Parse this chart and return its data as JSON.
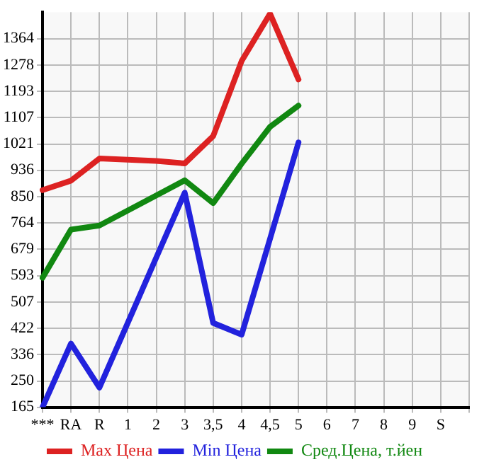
{
  "chart_data": {
    "type": "line",
    "categories": [
      "***",
      "RA",
      "R",
      "1",
      "2",
      "3",
      "3,5",
      "4",
      "4,5",
      "5",
      "6",
      "7",
      "8",
      "9",
      "S",
      null
    ],
    "series": [
      {
        "name": "Max Цена",
        "color": "#dd2222",
        "values": [
          871,
          902,
          974,
          970,
          966,
          958,
          1047,
          1291,
          1445,
          1231,
          null,
          null,
          null,
          null,
          null,
          null
        ]
      },
      {
        "name": "Min Цена",
        "color": "#2222dd",
        "values": [
          165,
          372,
          229,
          440,
          652,
          863,
          439,
          401,
          713,
          1026,
          null,
          null,
          null,
          null,
          null,
          null
        ]
      },
      {
        "name": "Сред.Цена, т.йен",
        "color": "#118811",
        "values": [
          586,
          743,
          756,
          805,
          854,
          903,
          829,
          957,
          1077,
          1146,
          null,
          null,
          null,
          null,
          null,
          null
        ]
      }
    ],
    "ylim": [
      165,
      1450
    ],
    "yticks": [
      165,
      250,
      336,
      422,
      507,
      593,
      679,
      764,
      850,
      936,
      1021,
      1107,
      1193,
      1278,
      1364
    ],
    "grid": true,
    "legend": "bottom",
    "marker": "none",
    "line_style": "solid"
  }
}
